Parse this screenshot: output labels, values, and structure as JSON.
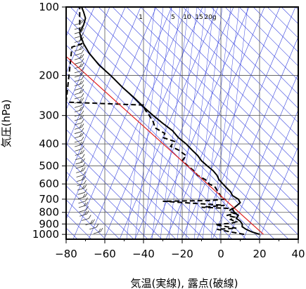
{
  "chart_data": {
    "type": "line",
    "title": "",
    "xlabel": "気温(実線), 露点(破線)",
    "ylabel": "気圧(hPa)",
    "xlim": [
      -80,
      40
    ],
    "ylim": [
      1050,
      100
    ],
    "y_scale": "log",
    "grid": true,
    "x_ticks": [
      -80,
      -60,
      -40,
      -20,
      0,
      20,
      40
    ],
    "y_ticks": [
      100,
      200,
      300,
      400,
      500,
      600,
      700,
      800,
      900,
      1000
    ],
    "mixing_ratio_labels": [
      "1",
      "5",
      "10",
      "15",
      "20g"
    ],
    "series": [
      {
        "style": "solid",
        "points": [
          [
            20,
            1000
          ],
          [
            16,
            975
          ],
          [
            13,
            950
          ],
          [
            11,
            925
          ],
          [
            11,
            900
          ],
          [
            10,
            875
          ],
          [
            8,
            850
          ],
          [
            9,
            825
          ],
          [
            7,
            800
          ],
          [
            6,
            775
          ],
          [
            8,
            750
          ],
          [
            10,
            725
          ],
          [
            9,
            700
          ],
          [
            6,
            675
          ],
          [
            5,
            650
          ],
          [
            3,
            625
          ],
          [
            1,
            600
          ],
          [
            -1,
            575
          ],
          [
            -2,
            550
          ],
          [
            -4,
            525
          ],
          [
            -7,
            500
          ],
          [
            -10,
            475
          ],
          [
            -12,
            450
          ],
          [
            -15,
            425
          ],
          [
            -18,
            400
          ],
          [
            -22,
            375
          ],
          [
            -25,
            350
          ],
          [
            -30,
            325
          ],
          [
            -35,
            300
          ],
          [
            -40,
            275
          ],
          [
            -45,
            250
          ],
          [
            -51,
            225
          ],
          [
            -57,
            200
          ],
          [
            -63,
            180
          ],
          [
            -68,
            160
          ],
          [
            -71,
            145
          ],
          [
            -73,
            130
          ],
          [
            -71,
            120
          ],
          [
            -70,
            112
          ],
          [
            -71,
            105
          ],
          [
            -72,
            100
          ]
        ]
      },
      {
        "style": "dashed",
        "points": [
          [
            12,
            1000
          ],
          [
            5,
            975
          ],
          [
            -2,
            950
          ],
          [
            8,
            940
          ],
          [
            3,
            925
          ],
          [
            -3,
            905
          ],
          [
            5,
            895
          ],
          [
            8,
            880
          ],
          [
            5,
            860
          ],
          [
            7,
            840
          ],
          [
            3,
            825
          ],
          [
            7,
            810
          ],
          [
            4,
            790
          ],
          [
            6,
            770
          ],
          [
            -10,
            760
          ],
          [
            2,
            745
          ],
          [
            -30,
            715
          ],
          [
            -5,
            710
          ],
          [
            2,
            700
          ],
          [
            0,
            680
          ],
          [
            -1,
            660
          ],
          [
            -2,
            640
          ],
          [
            -3,
            620
          ],
          [
            -6,
            600
          ],
          [
            -8,
            575
          ],
          [
            -12,
            550
          ],
          [
            -14,
            525
          ],
          [
            -17,
            500
          ],
          [
            -20,
            475
          ],
          [
            -18,
            450
          ],
          [
            -22,
            425
          ],
          [
            -26,
            410
          ],
          [
            -24,
            390
          ],
          [
            -30,
            375
          ],
          [
            -29,
            360
          ],
          [
            -34,
            340
          ],
          [
            -35,
            320
          ],
          [
            -37,
            300
          ],
          [
            -39,
            285
          ],
          [
            -40,
            270
          ],
          [
            -80,
            262
          ],
          [
            -77,
            150
          ],
          [
            -72,
            145
          ],
          [
            -73,
            125
          ],
          [
            -73,
            100
          ]
        ]
      },
      {
        "style": "red",
        "points": [
          [
            -80,
            165
          ],
          [
            22,
            1000
          ]
        ]
      }
    ]
  }
}
